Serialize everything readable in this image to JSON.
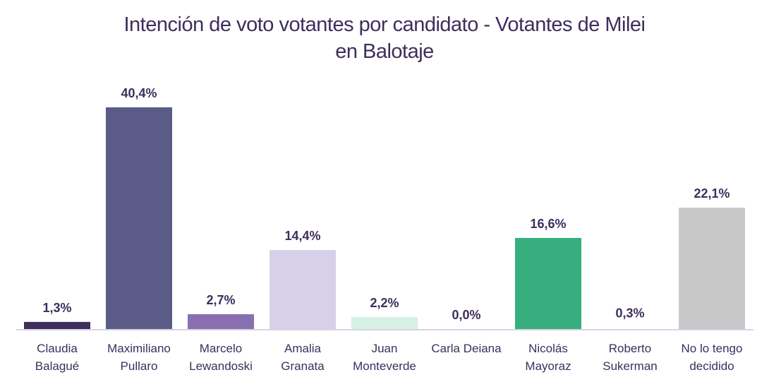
{
  "chart_data": {
    "type": "bar",
    "title": "Intención de voto votantes por candidato - Votantes de Milei en Balotaje",
    "title_lines": [
      "Intención de voto votantes por candidato - Votantes de Milei",
      "en Balotaje"
    ],
    "xlabel": "",
    "ylabel": "",
    "ylim": [
      0,
      40.4
    ],
    "grid": false,
    "legend": "none",
    "categories": [
      [
        "Claudia",
        "Balagué"
      ],
      [
        "Maximiliano",
        "Pullaro"
      ],
      [
        "Marcelo",
        "Lewandoski"
      ],
      [
        "Amalia",
        "Granata"
      ],
      [
        "Juan",
        "Monteverde"
      ],
      [
        "Carla Deiana"
      ],
      [
        "Nicolás",
        "Mayoraz"
      ],
      [
        "Roberto",
        "Sukerman"
      ],
      [
        "No lo tengo",
        "decidido"
      ]
    ],
    "values": [
      1.3,
      40.4,
      2.7,
      14.4,
      2.2,
      0.0,
      16.6,
      0.3,
      22.1
    ],
    "labels": [
      "1,3%",
      "40,4%",
      "2,7%",
      "14,4%",
      "2,2%",
      "0,0%",
      "16,6%",
      "0,3%",
      "22,1%"
    ],
    "colors": [
      "#3f2f5b",
      "#5a5c87",
      "#8870b0",
      "#d7d0e8",
      "#d5f2e5",
      "#ffffff",
      "#37ae7e",
      "#ffffff",
      "#c8c8c8"
    ],
    "axis_color": "#d9d3e8",
    "text_color": "#3d2e5c"
  }
}
